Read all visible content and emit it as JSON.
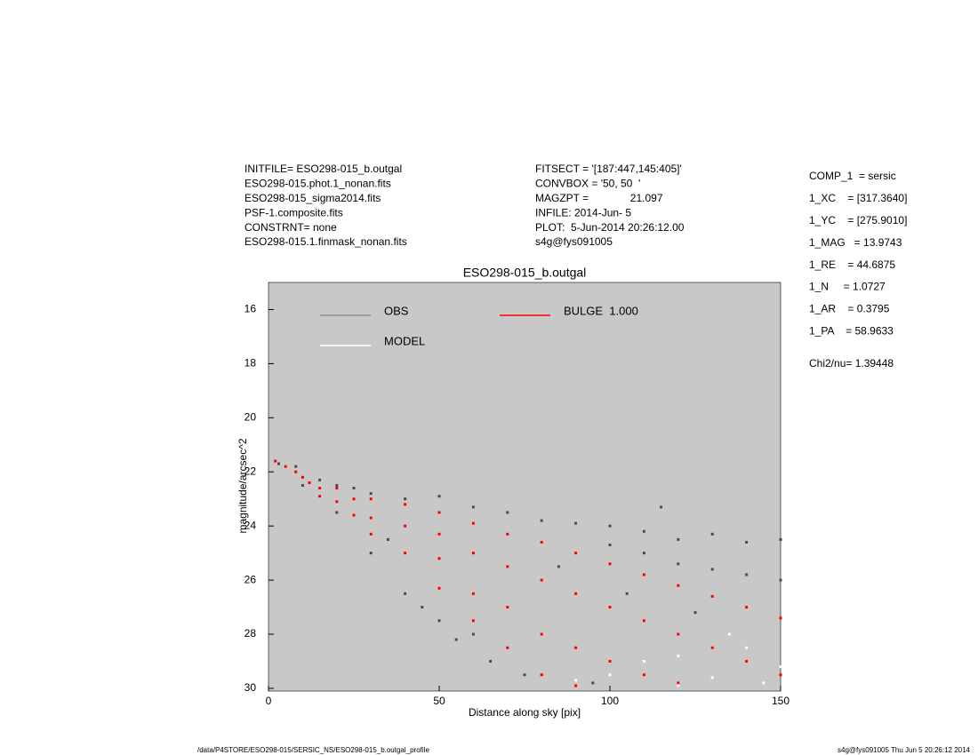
{
  "header": {
    "left": [
      "INITFILE= ESO298-015_b.outgal",
      "ESO298-015.phot.1_nonan.fits",
      "ESO298-015_sigma2014.fits",
      "PSF-1.composite.fits",
      "CONSTRNT= none",
      "ESO298-015.1.finmask_nonan.fits"
    ],
    "middle": [
      "FITSECT = '[187:447,145:405]'",
      "CONVBOX = '50, 50  '",
      "MAGZPT =              21.097",
      "INFILE: 2014-Jun- 5",
      "PLOT:  5-Jun-2014 20:26:12.00",
      "s4g@fys091005"
    ]
  },
  "params": [
    "COMP_1  = sersic",
    "1_XC    = [317.3640]",
    "1_YC    = [275.9010]",
    "1_MAG   = 13.9743",
    "1_RE    = 44.6875",
    "1_N     = 1.0727",
    "1_AR    = 0.3795",
    "1_PA    = 58.9633"
  ],
  "chi2": "Chi2/nu=      1.39448",
  "footer": {
    "left": "/data/P4STORE/ESO298-015/SERSIC_NS/ESO298-015_b.outgal_profile",
    "right": "s4g@fys091005  Thu Jun  5 20:26:12 2014"
  },
  "chart_data": {
    "type": "scatter",
    "title": "ESO298-015_b.outgal",
    "x_label": "Distance along sky [pix]",
    "y_label": "magnitude/arcsec^2",
    "xlim": [
      0,
      150
    ],
    "xticks": [
      0,
      50,
      100,
      150
    ],
    "ylim": [
      15,
      30.1
    ],
    "yticks": [
      16,
      18,
      20,
      22,
      24,
      26,
      28,
      30
    ],
    "y_inverted": true,
    "background": "#c8c8c8",
    "series": [
      {
        "name": "OBS",
        "color": "#4a4a4a",
        "legend_color": "#8c8c8c",
        "x": [
          3,
          8,
          10,
          15,
          20,
          20,
          25,
          30,
          30,
          35,
          40,
          40,
          45,
          50,
          50,
          55,
          60,
          60,
          65,
          70,
          75,
          80,
          90,
          95,
          100,
          100,
          110,
          110,
          115,
          120,
          120,
          130,
          130,
          140,
          140,
          150,
          150,
          85,
          105,
          125
        ],
        "values": [
          21.7,
          21.8,
          22.5,
          22.3,
          22.5,
          23.5,
          22.6,
          22.8,
          25.0,
          24.5,
          23.0,
          26.5,
          27.0,
          22.9,
          27.5,
          28.2,
          23.3,
          28.0,
          29.0,
          23.5,
          29.5,
          23.8,
          23.9,
          29.8,
          24.0,
          24.7,
          24.2,
          25.0,
          23.3,
          24.5,
          25.4,
          24.3,
          25.6,
          24.6,
          25.8,
          24.5,
          26.0,
          25.5,
          26.5,
          27.2
        ]
      },
      {
        "name": "BULGE  1.000",
        "color": "#ff0000",
        "legend_color": "#ff0000",
        "x": [
          2,
          5,
          8,
          10,
          12,
          15,
          15,
          20,
          20,
          25,
          25,
          30,
          30,
          30,
          40,
          40,
          40,
          50,
          50,
          50,
          50,
          60,
          60,
          60,
          60,
          70,
          70,
          70,
          70,
          80,
          80,
          80,
          80,
          90,
          90,
          90,
          90,
          100,
          100,
          100,
          110,
          110,
          110,
          120,
          120,
          120,
          130,
          130,
          140,
          140,
          150,
          150
        ],
        "values": [
          21.6,
          21.8,
          22.0,
          22.2,
          22.4,
          22.6,
          22.9,
          22.6,
          23.1,
          23.0,
          23.6,
          23.0,
          23.7,
          24.3,
          23.2,
          24.0,
          25.0,
          23.5,
          24.3,
          25.2,
          26.3,
          23.9,
          25.0,
          26.5,
          27.5,
          24.3,
          25.5,
          27.0,
          28.5,
          24.6,
          26.0,
          28.0,
          29.5,
          25.0,
          26.5,
          28.5,
          29.9,
          25.4,
          27.0,
          29.0,
          25.8,
          27.5,
          29.5,
          26.2,
          28.0,
          29.8,
          26.6,
          28.5,
          27.0,
          29.0,
          27.4,
          29.5
        ]
      },
      {
        "name": "MODEL",
        "color": "#ffffff",
        "legend_color": "#ffffff",
        "x": [
          90,
          100,
          110,
          120,
          130,
          140,
          145,
          150,
          120,
          135
        ],
        "values": [
          29.7,
          29.5,
          29.0,
          28.8,
          29.6,
          28.5,
          29.8,
          29.2,
          29.9,
          28.0
        ]
      }
    ]
  }
}
